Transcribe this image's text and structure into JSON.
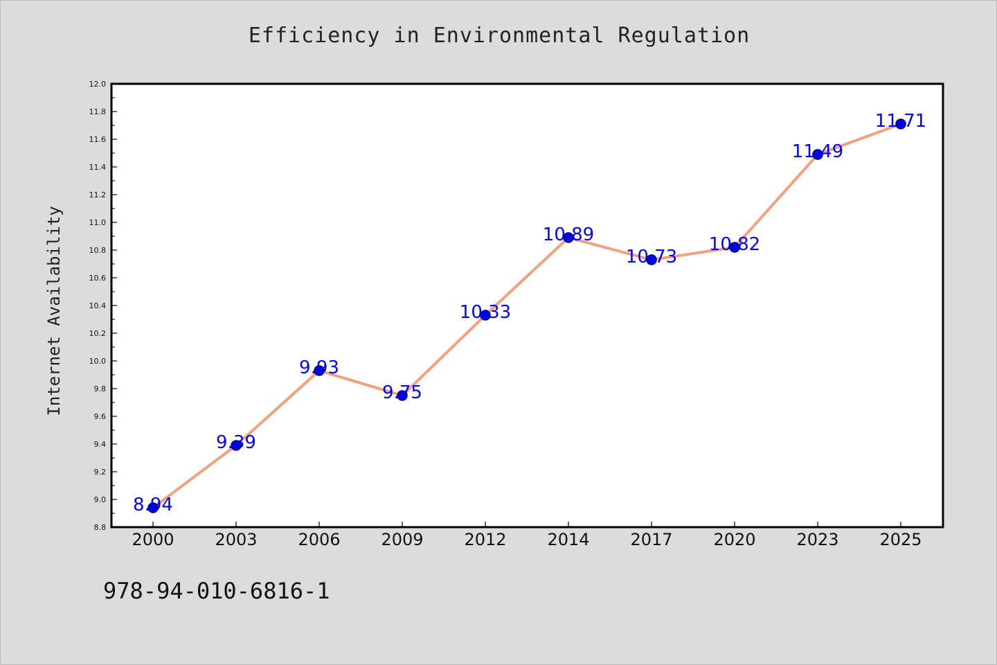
{
  "chart_data": {
    "type": "line",
    "title": "Efficiency in Environmental Regulation",
    "xlabel": "",
    "ylabel": "Internet Availability",
    "categories": [
      "2000",
      "2003",
      "2006",
      "2009",
      "2012",
      "2014",
      "2017",
      "2020",
      "2023",
      "2025"
    ],
    "series": [
      {
        "values": [
          8.94,
          9.39,
          9.93,
          9.75,
          10.33,
          10.89,
          10.73,
          10.82,
          11.49,
          11.71
        ],
        "data_labels": [
          "8.94",
          "9.39",
          "9.93",
          "9.75",
          "10.33",
          "10.89",
          "10.73",
          "10.82",
          "11.49",
          "11.71"
        ]
      }
    ],
    "ylim": [
      8.8,
      12.0
    ],
    "yticks": [
      "8.8",
      "9.0",
      "9.2",
      "9.4",
      "9.6",
      "9.8",
      "10.0",
      "10.2",
      "10.4",
      "10.6",
      "10.8",
      "11.0",
      "11.2",
      "11.4",
      "11.6",
      "11.8",
      "12.0"
    ],
    "grid": false,
    "legend": "none",
    "colors": {
      "line": "#f4a07e",
      "marker_fill": "#0000ee",
      "marker_stroke": "#000066",
      "data_label": "#0000ff",
      "background": "#dcdcdc",
      "plot_area": "#ffffff"
    }
  },
  "footer": {
    "code": "978-94-010-6816-1"
  }
}
